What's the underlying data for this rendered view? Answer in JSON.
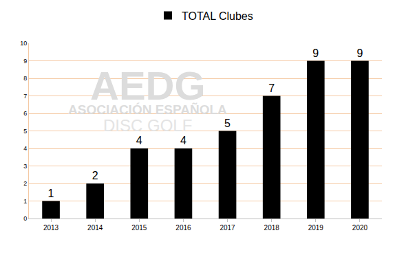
{
  "chart_data": {
    "type": "bar",
    "categories": [
      "2013",
      "2014",
      "2015",
      "2016",
      "2017",
      "2018",
      "2019",
      "2020"
    ],
    "series": [
      {
        "name": "TOTAL Clubes",
        "color": "#000000",
        "values": [
          1,
          2,
          4,
          4,
          5,
          7,
          9,
          9
        ]
      }
    ],
    "ylim": [
      0,
      10
    ],
    "yticks": [
      0,
      1,
      2,
      3,
      4,
      5,
      6,
      7,
      8,
      9,
      10
    ],
    "grid": true,
    "legend": "top",
    "data_labels": true,
    "annotations": [
      "AEDG",
      "ASOCIACIÓN ESPAÑOLA",
      "DISC GOLF"
    ]
  }
}
